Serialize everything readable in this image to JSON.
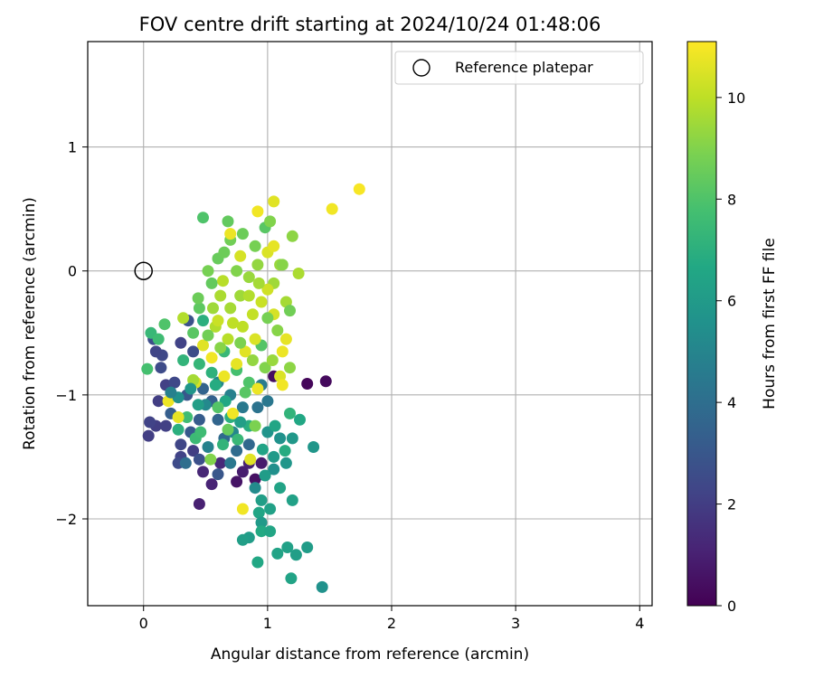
{
  "chart_data": {
    "type": "scatter",
    "title": "FOV centre drift starting at 2024/10/24 01:48:06",
    "xlabel": "Angular distance from reference (arcmin)",
    "ylabel": "Rotation from reference (arcmin)",
    "xlim": [
      -0.45,
      4.1
    ],
    "ylim": [
      -2.7,
      1.85
    ],
    "xticks": [
      0,
      1,
      2,
      3,
      4
    ],
    "yticks": [
      -2,
      -1,
      0,
      1
    ],
    "grid": true,
    "legend": {
      "placement": "top-right",
      "entries": [
        "Reference platepar"
      ]
    },
    "reference_point": {
      "x": 0,
      "y": 0
    },
    "colorbar": {
      "label": "Hours from first FF file",
      "colormap": "viridis",
      "range": [
        0,
        11.1
      ],
      "ticks": [
        0,
        2,
        4,
        6,
        8,
        10
      ]
    },
    "points": [
      {
        "x": 1.32,
        "y": -0.91,
        "c": 0.2
      },
      {
        "x": 1.47,
        "y": -0.89,
        "c": 0.3
      },
      {
        "x": 1.05,
        "y": -0.85,
        "c": 0.4
      },
      {
        "x": 0.45,
        "y": -1.88,
        "c": 1.0
      },
      {
        "x": 0.8,
        "y": -1.62,
        "c": 0.9
      },
      {
        "x": 0.95,
        "y": -1.55,
        "c": 0.8
      },
      {
        "x": 0.55,
        "y": -1.72,
        "c": 1.1
      },
      {
        "x": 0.75,
        "y": -1.7,
        "c": 0.6
      },
      {
        "x": 0.9,
        "y": -1.68,
        "c": 0.5
      },
      {
        "x": 0.62,
        "y": -1.55,
        "c": 1.3
      },
      {
        "x": 0.85,
        "y": -1.55,
        "c": 1.0
      },
      {
        "x": 0.48,
        "y": -1.62,
        "c": 1.2
      },
      {
        "x": 0.1,
        "y": -1.25,
        "c": 2.0
      },
      {
        "x": 0.18,
        "y": -1.25,
        "c": 2.1
      },
      {
        "x": 0.05,
        "y": -1.22,
        "c": 2.2
      },
      {
        "x": 0.04,
        "y": -1.33,
        "c": 2.0
      },
      {
        "x": 0.12,
        "y": -1.05,
        "c": 2.0
      },
      {
        "x": 0.18,
        "y": -0.92,
        "c": 2.1
      },
      {
        "x": 0.15,
        "y": -0.68,
        "c": 2.4
      },
      {
        "x": 0.1,
        "y": -0.65,
        "c": 2.3
      },
      {
        "x": 0.14,
        "y": -0.78,
        "c": 2.5
      },
      {
        "x": 0.08,
        "y": -0.55,
        "c": 2.6
      },
      {
        "x": 0.3,
        "y": -0.58,
        "c": 2.2
      },
      {
        "x": 0.36,
        "y": -0.4,
        "c": 2.8
      },
      {
        "x": 0.4,
        "y": -0.65,
        "c": 2.6
      },
      {
        "x": 0.25,
        "y": -0.9,
        "c": 2.4
      },
      {
        "x": 0.3,
        "y": -1.4,
        "c": 2.3
      },
      {
        "x": 0.4,
        "y": -1.45,
        "c": 2.0
      },
      {
        "x": 0.3,
        "y": -1.5,
        "c": 2.2
      },
      {
        "x": 0.28,
        "y": -1.55,
        "c": 2.5
      },
      {
        "x": 0.45,
        "y": -1.52,
        "c": 2.7
      },
      {
        "x": 0.6,
        "y": -1.64,
        "c": 3.0
      },
      {
        "x": 0.35,
        "y": -1.0,
        "c": 3.0
      },
      {
        "x": 0.45,
        "y": -1.2,
        "c": 3.2
      },
      {
        "x": 0.22,
        "y": -1.15,
        "c": 3.3
      },
      {
        "x": 0.48,
        "y": -0.95,
        "c": 3.5
      },
      {
        "x": 0.55,
        "y": -1.05,
        "c": 3.4
      },
      {
        "x": 0.6,
        "y": -1.2,
        "c": 3.6
      },
      {
        "x": 0.38,
        "y": -1.3,
        "c": 3.1
      },
      {
        "x": 0.65,
        "y": -1.35,
        "c": 3.8
      },
      {
        "x": 0.75,
        "y": -1.45,
        "c": 3.9
      },
      {
        "x": 0.85,
        "y": -1.4,
        "c": 3.7
      },
      {
        "x": 0.92,
        "y": -1.1,
        "c": 4.2
      },
      {
        "x": 1.0,
        "y": -1.05,
        "c": 4.4
      },
      {
        "x": 0.95,
        "y": -0.92,
        "c": 4.6
      },
      {
        "x": 0.7,
        "y": -1.0,
        "c": 4.8
      },
      {
        "x": 0.8,
        "y": -1.1,
        "c": 4.5
      },
      {
        "x": 0.6,
        "y": -0.9,
        "c": 5.0
      },
      {
        "x": 0.5,
        "y": -1.08,
        "c": 5.2
      },
      {
        "x": 0.52,
        "y": -1.42,
        "c": 4.9
      },
      {
        "x": 0.72,
        "y": -1.3,
        "c": 5.1
      },
      {
        "x": 0.9,
        "y": -1.75,
        "c": 5.3
      },
      {
        "x": 1.05,
        "y": -1.6,
        "c": 5.5
      },
      {
        "x": 1.1,
        "y": -1.35,
        "c": 5.6
      },
      {
        "x": 1.15,
        "y": -1.55,
        "c": 5.8
      },
      {
        "x": 1.2,
        "y": -1.35,
        "c": 5.9
      },
      {
        "x": 1.0,
        "y": -1.3,
        "c": 5.7
      },
      {
        "x": 1.05,
        "y": -1.5,
        "c": 6.0
      },
      {
        "x": 0.98,
        "y": -1.65,
        "c": 6.1
      },
      {
        "x": 0.95,
        "y": -1.85,
        "c": 6.2
      },
      {
        "x": 1.02,
        "y": -1.92,
        "c": 6.3
      },
      {
        "x": 1.2,
        "y": -1.85,
        "c": 6.3
      },
      {
        "x": 1.1,
        "y": -1.75,
        "c": 6.4
      },
      {
        "x": 0.93,
        "y": -1.95,
        "c": 6.5
      },
      {
        "x": 0.95,
        "y": -2.03,
        "c": 6.0
      },
      {
        "x": 0.85,
        "y": -2.15,
        "c": 6.1
      },
      {
        "x": 0.8,
        "y": -2.17,
        "c": 6.2
      },
      {
        "x": 0.95,
        "y": -2.1,
        "c": 6.7
      },
      {
        "x": 1.02,
        "y": -2.1,
        "c": 6.5
      },
      {
        "x": 1.08,
        "y": -2.28,
        "c": 6.4
      },
      {
        "x": 1.16,
        "y": -2.23,
        "c": 6.3
      },
      {
        "x": 1.23,
        "y": -2.29,
        "c": 6.2
      },
      {
        "x": 1.32,
        "y": -2.23,
        "c": 6.1
      },
      {
        "x": 0.92,
        "y": -2.35,
        "c": 6.6
      },
      {
        "x": 1.19,
        "y": -2.48,
        "c": 6.4
      },
      {
        "x": 1.44,
        "y": -2.55,
        "c": 5.6
      },
      {
        "x": 1.37,
        "y": -1.42,
        "c": 5.8
      },
      {
        "x": 1.26,
        "y": -1.2,
        "c": 6.6
      },
      {
        "x": 1.14,
        "y": -1.45,
        "c": 6.8
      },
      {
        "x": 0.85,
        "y": -1.25,
        "c": 6.9
      },
      {
        "x": 0.7,
        "y": -1.18,
        "c": 7.0
      },
      {
        "x": 0.55,
        "y": -0.82,
        "c": 7.1
      },
      {
        "x": 0.45,
        "y": -0.75,
        "c": 7.3
      },
      {
        "x": 0.65,
        "y": -0.65,
        "c": 7.4
      },
      {
        "x": 0.32,
        "y": -0.72,
        "c": 7.2
      },
      {
        "x": 0.28,
        "y": -1.28,
        "c": 7.0
      },
      {
        "x": 0.42,
        "y": -1.35,
        "c": 7.5
      },
      {
        "x": 0.35,
        "y": -1.18,
        "c": 7.6
      },
      {
        "x": 0.75,
        "y": -0.8,
        "c": 7.8
      },
      {
        "x": 0.85,
        "y": -0.9,
        "c": 8.0
      },
      {
        "x": 0.95,
        "y": -0.6,
        "c": 8.1
      },
      {
        "x": 0.4,
        "y": -0.5,
        "c": 8.2
      },
      {
        "x": 0.45,
        "y": -0.3,
        "c": 8.3
      },
      {
        "x": 0.55,
        "y": -0.1,
        "c": 8.4
      },
      {
        "x": 0.6,
        "y": 0.1,
        "c": 8.5
      },
      {
        "x": 0.65,
        "y": 0.15,
        "c": 8.6
      },
      {
        "x": 0.7,
        "y": 0.25,
        "c": 8.7
      },
      {
        "x": 0.48,
        "y": 0.43,
        "c": 8.0
      },
      {
        "x": 0.68,
        "y": 0.4,
        "c": 8.4
      },
      {
        "x": 0.8,
        "y": 0.3,
        "c": 8.6
      },
      {
        "x": 0.9,
        "y": 0.2,
        "c": 8.8
      },
      {
        "x": 0.98,
        "y": 0.35,
        "c": 8.2
      },
      {
        "x": 1.02,
        "y": 0.4,
        "c": 9.0
      },
      {
        "x": 1.2,
        "y": 0.28,
        "c": 9.2
      },
      {
        "x": 1.1,
        "y": 0.05,
        "c": 9.4
      },
      {
        "x": 1.05,
        "y": -0.1,
        "c": 9.5
      },
      {
        "x": 1.15,
        "y": -0.25,
        "c": 9.6
      },
      {
        "x": 1.18,
        "y": -0.32,
        "c": 8.7
      },
      {
        "x": 1.25,
        "y": -0.02,
        "c": 9.7
      },
      {
        "x": 1.12,
        "y": 0.05,
        "c": 9.1
      },
      {
        "x": 0.92,
        "y": 0.05,
        "c": 9.3
      },
      {
        "x": 0.85,
        "y": -0.05,
        "c": 9.4
      },
      {
        "x": 0.75,
        "y": 0.0,
        "c": 9.0
      },
      {
        "x": 0.78,
        "y": -0.2,
        "c": 9.5
      },
      {
        "x": 0.7,
        "y": -0.3,
        "c": 9.6
      },
      {
        "x": 0.62,
        "y": -0.2,
        "c": 9.7
      },
      {
        "x": 0.58,
        "y": -0.45,
        "c": 9.8
      },
      {
        "x": 0.68,
        "y": -0.55,
        "c": 9.9
      },
      {
        "x": 0.8,
        "y": -0.45,
        "c": 10.0
      },
      {
        "x": 0.88,
        "y": -0.35,
        "c": 10.1
      },
      {
        "x": 0.95,
        "y": -0.25,
        "c": 10.2
      },
      {
        "x": 1.0,
        "y": -0.15,
        "c": 10.3
      },
      {
        "x": 1.05,
        "y": -0.35,
        "c": 10.4
      },
      {
        "x": 0.9,
        "y": -0.55,
        "c": 10.5
      },
      {
        "x": 0.82,
        "y": -0.65,
        "c": 10.6
      },
      {
        "x": 0.75,
        "y": -0.75,
        "c": 10.7
      },
      {
        "x": 0.65,
        "y": -0.85,
        "c": 10.8
      },
      {
        "x": 0.55,
        "y": -0.7,
        "c": 10.9
      },
      {
        "x": 0.48,
        "y": -0.6,
        "c": 10.6
      },
      {
        "x": 0.42,
        "y": -0.9,
        "c": 10.4
      },
      {
        "x": 0.6,
        "y": -0.4,
        "c": 10.2
      },
      {
        "x": 0.72,
        "y": -0.42,
        "c": 10.0
      },
      {
        "x": 0.85,
        "y": -0.2,
        "c": 9.8
      },
      {
        "x": 0.93,
        "y": -0.1,
        "c": 9.6
      },
      {
        "x": 1.0,
        "y": 0.15,
        "c": 10.5
      },
      {
        "x": 1.05,
        "y": 0.2,
        "c": 10.7
      },
      {
        "x": 0.92,
        "y": 0.48,
        "c": 10.9
      },
      {
        "x": 1.05,
        "y": 0.56,
        "c": 10.6
      },
      {
        "x": 0.7,
        "y": 0.3,
        "c": 10.8
      },
      {
        "x": 0.78,
        "y": 0.12,
        "c": 10.4
      },
      {
        "x": 1.52,
        "y": 0.5,
        "c": 10.9
      },
      {
        "x": 1.74,
        "y": 0.66,
        "c": 11.0
      },
      {
        "x": 1.15,
        "y": -0.55,
        "c": 10.7
      },
      {
        "x": 1.12,
        "y": -0.65,
        "c": 10.8
      },
      {
        "x": 1.1,
        "y": -0.85,
        "c": 10.5
      },
      {
        "x": 1.18,
        "y": -0.78,
        "c": 9.2
      },
      {
        "x": 1.12,
        "y": -0.92,
        "c": 10.9
      },
      {
        "x": 0.92,
        "y": -0.95,
        "c": 10.8
      },
      {
        "x": 0.72,
        "y": -1.15,
        "c": 10.9
      },
      {
        "x": 0.28,
        "y": -1.18,
        "c": 10.7
      },
      {
        "x": 0.2,
        "y": -1.05,
        "c": 10.8
      },
      {
        "x": 0.32,
        "y": -0.38,
        "c": 9.8
      },
      {
        "x": 0.4,
        "y": -0.88,
        "c": 9.6
      },
      {
        "x": 0.86,
        "y": -1.52,
        "c": 10.6
      },
      {
        "x": 0.8,
        "y": -1.92,
        "c": 10.9
      },
      {
        "x": 0.54,
        "y": -1.52,
        "c": 9.0
      },
      {
        "x": 0.9,
        "y": -1.25,
        "c": 8.9
      },
      {
        "x": 0.68,
        "y": -1.28,
        "c": 8.5
      },
      {
        "x": 0.82,
        "y": -0.98,
        "c": 8.2
      },
      {
        "x": 0.98,
        "y": -0.78,
        "c": 9.0
      },
      {
        "x": 1.04,
        "y": -0.72,
        "c": 9.4
      },
      {
        "x": 1.08,
        "y": -0.48,
        "c": 9.1
      },
      {
        "x": 1.0,
        "y": -0.38,
        "c": 8.8
      },
      {
        "x": 0.88,
        "y": -0.72,
        "c": 9.3
      },
      {
        "x": 0.78,
        "y": -0.58,
        "c": 8.9
      },
      {
        "x": 0.62,
        "y": -0.62,
        "c": 9.1
      },
      {
        "x": 0.52,
        "y": -0.52,
        "c": 8.7
      },
      {
        "x": 0.56,
        "y": -0.3,
        "c": 9.5
      },
      {
        "x": 0.64,
        "y": -0.08,
        "c": 9.9
      },
      {
        "x": 0.52,
        "y": 0.0,
        "c": 8.8
      },
      {
        "x": 0.44,
        "y": -0.22,
        "c": 8.6
      },
      {
        "x": 0.06,
        "y": -0.5,
        "c": 7.4
      },
      {
        "x": 0.03,
        "y": -0.79,
        "c": 7.8
      },
      {
        "x": 0.17,
        "y": -0.43,
        "c": 8.0
      },
      {
        "x": 0.12,
        "y": -0.55,
        "c": 7.6
      },
      {
        "x": 0.48,
        "y": -0.4,
        "c": 7.0
      },
      {
        "x": 0.58,
        "y": -0.92,
        "c": 6.8
      },
      {
        "x": 0.66,
        "y": -1.05,
        "c": 6.6
      },
      {
        "x": 0.44,
        "y": -1.08,
        "c": 6.2
      },
      {
        "x": 0.38,
        "y": -0.95,
        "c": 5.8
      },
      {
        "x": 0.28,
        "y": -1.02,
        "c": 5.5
      },
      {
        "x": 0.22,
        "y": -0.98,
        "c": 4.8
      },
      {
        "x": 0.34,
        "y": -1.55,
        "c": 4.0
      },
      {
        "x": 0.7,
        "y": -1.55,
        "c": 4.4
      },
      {
        "x": 0.64,
        "y": -1.4,
        "c": 7.2
      },
      {
        "x": 0.76,
        "y": -1.36,
        "c": 7.4
      },
      {
        "x": 0.46,
        "y": -1.3,
        "c": 7.6
      },
      {
        "x": 0.6,
        "y": -1.1,
        "c": 8.1
      },
      {
        "x": 0.78,
        "y": -1.22,
        "c": 6.2
      },
      {
        "x": 0.96,
        "y": -1.44,
        "c": 6.4
      },
      {
        "x": 1.18,
        "y": -1.15,
        "c": 7.2
      },
      {
        "x": 1.06,
        "y": -1.25,
        "c": 6.5
      }
    ]
  }
}
